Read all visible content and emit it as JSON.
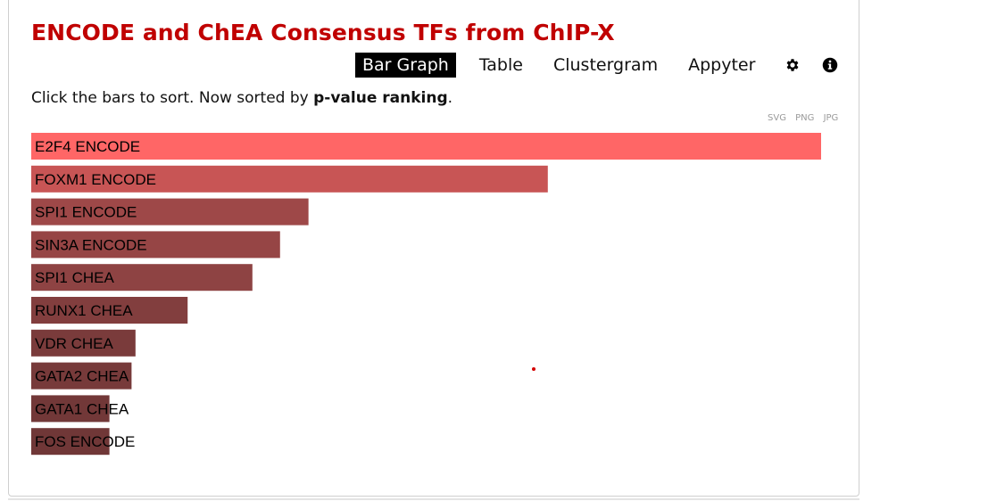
{
  "title": "ENCODE and ChEA Consensus TFs from ChIP-X",
  "nav": {
    "bar_graph": "Bar Graph",
    "table": "Table",
    "clustergram": "Clustergram",
    "appyter": "Appyter",
    "settings_icon": "gear-icon",
    "info_icon": "info-icon"
  },
  "sort_note": {
    "prefix": "Click the bars to sort. Now sorted by ",
    "key": "p-value ranking",
    "suffix": "."
  },
  "downloads": {
    "svg": "SVG",
    "png": "PNG",
    "jpg": "JPG"
  },
  "colors": {
    "title": "#c00000",
    "bar_top": "#ff6666",
    "bar_bottom": "#6e3333"
  },
  "chart_data": {
    "type": "bar",
    "orientation": "horizontal",
    "title": "",
    "xlabel": "",
    "ylabel": "",
    "categories": [
      "E2F4 ENCODE",
      "FOXM1 ENCODE",
      "SPI1 ENCODE",
      "SIN3A ENCODE",
      "SPI1 CHEA",
      "RUNX1 CHEA",
      "VDR CHEA",
      "GATA2 CHEA",
      "GATA1 CHEA",
      "FOS ENCODE"
    ],
    "values": [
      100,
      65.4,
      35.1,
      31.5,
      28.0,
      19.8,
      13.2,
      12.7,
      9.9,
      9.9
    ],
    "colors": [
      "#ff6666",
      "#c85555",
      "#9e4848",
      "#964545",
      "#8e4343",
      "#823e3e",
      "#7a3b3b",
      "#773a3a",
      "#723838",
      "#703737"
    ],
    "xlim": [
      0,
      100
    ]
  }
}
